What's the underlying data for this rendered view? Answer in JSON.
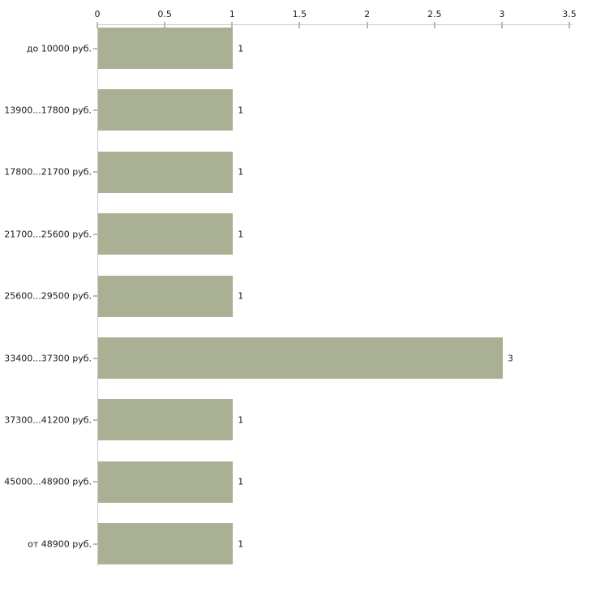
{
  "chart_data": {
    "type": "bar",
    "orientation": "horizontal",
    "categories": [
      "до 10000 руб.",
      "13900...17800 руб.",
      "17800...21700 руб.",
      "21700...25600 руб.",
      "25600...29500 руб.",
      "33400...37300 руб.",
      "37300...41200 руб.",
      "45000...48900 руб.",
      "от 48900 руб."
    ],
    "values": [
      1,
      1,
      1,
      1,
      1,
      3,
      1,
      1,
      1
    ],
    "value_labels": [
      "1",
      "1",
      "1",
      "1",
      "1",
      "3",
      "1",
      "1",
      "1"
    ],
    "x_ticks": [
      0,
      0.5,
      1,
      1.5,
      2,
      2.5,
      3,
      3.5
    ],
    "x_tick_labels": [
      "0",
      "0.5",
      "1",
      "1.5",
      "2",
      "2.5",
      "3",
      "3.5"
    ],
    "xlim": [
      0,
      3.5
    ],
    "xlabel": "",
    "ylabel": "",
    "grid": false,
    "legend": false,
    "axis_position": "top"
  },
  "colors": {
    "bar_fill": "#aab094",
    "axis_line": "#c9c9c9",
    "tick_mark": "#b9bd9a",
    "text": "#1a1a1a",
    "background": "#ffffff"
  }
}
